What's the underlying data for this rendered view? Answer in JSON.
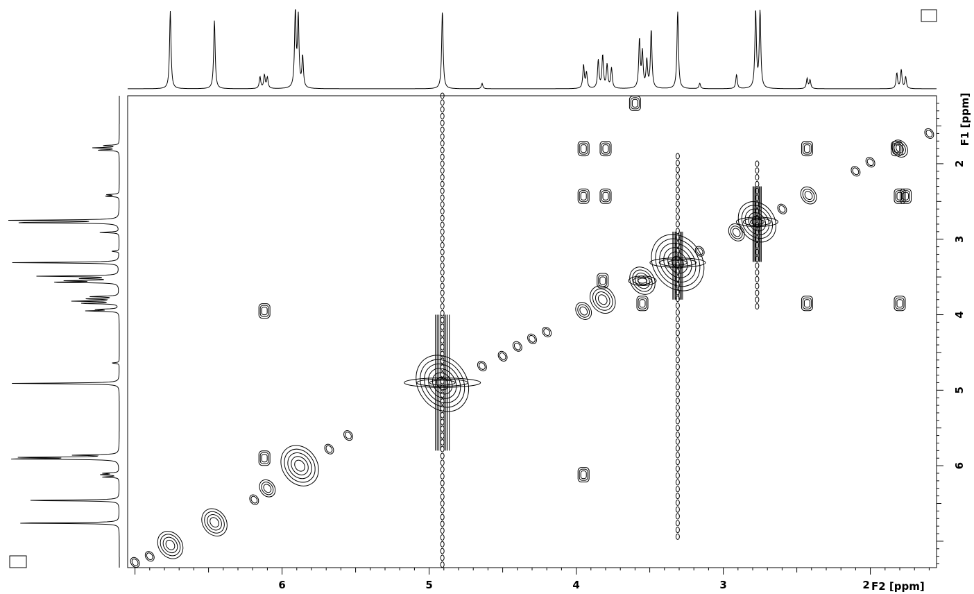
{
  "chart_data": {
    "type": "scatter",
    "experiment": "2D homonuclear correlation contour plot",
    "f2_axis": {
      "label": "F2 [ppm]",
      "range": [
        7.05,
        1.55
      ],
      "ticks": [
        6,
        5,
        4,
        3,
        2
      ],
      "tick_labels": [
        "6",
        "5",
        "4",
        "3",
        "2"
      ]
    },
    "f1_axis": {
      "label": "F1 [ppm]",
      "range": [
        1.1,
        7.35
      ],
      "ticks": [
        2,
        3,
        4,
        5,
        6
      ],
      "tick_labels": [
        "2",
        "3",
        "4",
        "5",
        "6"
      ]
    },
    "projection_peaks": [
      {
        "ppm": 6.76,
        "height": 1.0
      },
      {
        "ppm": 6.46,
        "height": 0.88
      },
      {
        "ppm": 6.15,
        "height": 0.15
      },
      {
        "ppm": 6.12,
        "height": 0.17
      },
      {
        "ppm": 6.1,
        "height": 0.14
      },
      {
        "ppm": 5.91,
        "height": 1.0
      },
      {
        "ppm": 5.89,
        "height": 0.9
      },
      {
        "ppm": 5.86,
        "height": 0.4
      },
      {
        "ppm": 4.91,
        "height": 1.0
      },
      {
        "ppm": 4.64,
        "height": 0.07
      },
      {
        "ppm": 3.95,
        "height": 0.3
      },
      {
        "ppm": 3.93,
        "height": 0.2
      },
      {
        "ppm": 3.85,
        "height": 0.36
      },
      {
        "ppm": 3.82,
        "height": 0.42
      },
      {
        "ppm": 3.79,
        "height": 0.3
      },
      {
        "ppm": 3.76,
        "height": 0.26
      },
      {
        "ppm": 3.57,
        "height": 0.62
      },
      {
        "ppm": 3.55,
        "height": 0.45
      },
      {
        "ppm": 3.52,
        "height": 0.35
      },
      {
        "ppm": 3.49,
        "height": 0.75
      },
      {
        "ppm": 3.31,
        "height": 1.0
      },
      {
        "ppm": 3.16,
        "height": 0.07
      },
      {
        "ppm": 2.91,
        "height": 0.18
      },
      {
        "ppm": 2.78,
        "height": 1.0
      },
      {
        "ppm": 2.75,
        "height": 1.0
      },
      {
        "ppm": 2.43,
        "height": 0.13
      },
      {
        "ppm": 2.41,
        "height": 0.11
      },
      {
        "ppm": 1.82,
        "height": 0.2
      },
      {
        "ppm": 1.79,
        "height": 0.24
      },
      {
        "ppm": 1.76,
        "height": 0.15
      }
    ],
    "diagonal_peaks": [
      {
        "f2": 7.0,
        "f1": 7.28,
        "size": 1
      },
      {
        "f2": 6.9,
        "f1": 7.2,
        "size": 1
      },
      {
        "f2": 6.76,
        "f1": 7.05,
        "size": 3
      },
      {
        "f2": 6.46,
        "f1": 6.75,
        "size": 3
      },
      {
        "f2": 6.19,
        "f1": 6.45,
        "size": 1
      },
      {
        "f2": 6.1,
        "f1": 6.3,
        "size": 2
      },
      {
        "f2": 5.88,
        "f1": 6.0,
        "size": 4
      },
      {
        "f2": 5.68,
        "f1": 5.78,
        "size": 1
      },
      {
        "f2": 5.55,
        "f1": 5.6,
        "size": 1
      },
      {
        "f2": 4.91,
        "f1": 4.91,
        "size": 5
      },
      {
        "f2": 4.64,
        "f1": 4.68,
        "size": 1
      },
      {
        "f2": 4.5,
        "f1": 4.55,
        "size": 1
      },
      {
        "f2": 4.4,
        "f1": 4.42,
        "size": 1
      },
      {
        "f2": 4.3,
        "f1": 4.32,
        "size": 1
      },
      {
        "f2": 4.2,
        "f1": 4.23,
        "size": 1
      },
      {
        "f2": 3.95,
        "f1": 3.95,
        "size": 2
      },
      {
        "f2": 3.82,
        "f1": 3.8,
        "size": 3
      },
      {
        "f2": 3.55,
        "f1": 3.55,
        "size": 3
      },
      {
        "f2": 3.31,
        "f1": 3.31,
        "size": 5
      },
      {
        "f2": 3.16,
        "f1": 3.16,
        "size": 1
      },
      {
        "f2": 2.91,
        "f1": 2.91,
        "size": 2
      },
      {
        "f2": 2.77,
        "f1": 2.77,
        "size": 4
      },
      {
        "f2": 2.6,
        "f1": 2.6,
        "size": 1
      },
      {
        "f2": 2.42,
        "f1": 2.42,
        "size": 2
      },
      {
        "f2": 2.1,
        "f1": 2.1,
        "size": 1
      },
      {
        "f2": 2.0,
        "f1": 1.98,
        "size": 1
      },
      {
        "f2": 1.8,
        "f1": 1.8,
        "size": 2
      },
      {
        "f2": 1.6,
        "f1": 1.6,
        "size": 1
      }
    ],
    "cross_peaks": [
      {
        "f2": 3.6,
        "f1": 1.2
      },
      {
        "f2": 3.95,
        "f1": 1.8
      },
      {
        "f2": 3.8,
        "f1": 1.8
      },
      {
        "f2": 2.43,
        "f1": 1.8
      },
      {
        "f2": 3.95,
        "f1": 2.43
      },
      {
        "f2": 3.8,
        "f1": 2.43
      },
      {
        "f2": 1.8,
        "f1": 2.43
      },
      {
        "f2": 2.43,
        "f1": 3.85
      },
      {
        "f2": 1.8,
        "f1": 3.85
      },
      {
        "f2": 3.82,
        "f1": 3.55
      },
      {
        "f2": 3.55,
        "f1": 3.85
      },
      {
        "f2": 6.12,
        "f1": 3.95
      },
      {
        "f2": 3.95,
        "f1": 6.12
      },
      {
        "f2": 6.12,
        "f1": 5.9
      },
      {
        "f2": 1.82,
        "f1": 1.8
      },
      {
        "f2": 1.76,
        "f1": 2.43
      }
    ],
    "solvent_streaks": [
      {
        "f2": 4.91,
        "from": 1.1,
        "to": 7.35
      },
      {
        "f2": 3.31,
        "from": 1.9,
        "to": 7.0
      },
      {
        "f2": 2.77,
        "from": 2.0,
        "to": 3.9
      }
    ],
    "grid": false,
    "legend": "none"
  }
}
